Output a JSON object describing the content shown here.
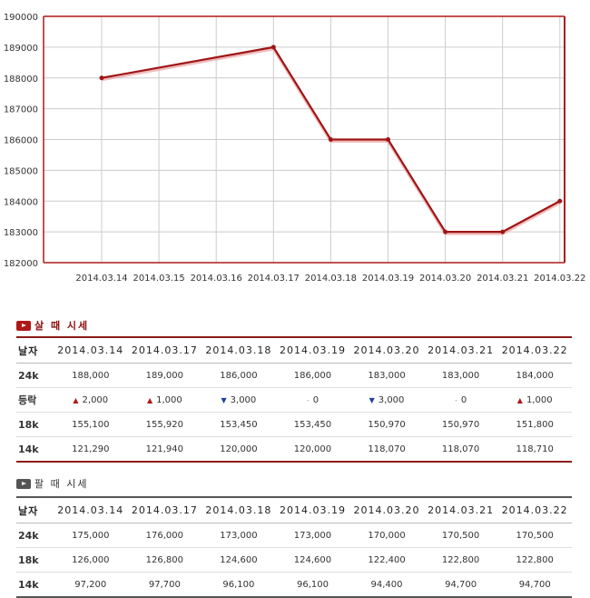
{
  "chart_data": {
    "type": "line",
    "x": [
      "2014.03.14",
      "2014.03.15",
      "2014.03.16",
      "2014.03.17",
      "2014.03.18",
      "2014.03.19",
      "2014.03.20",
      "2014.03.21",
      "2014.03.22"
    ],
    "points": [
      {
        "x": "2014.03.14",
        "y": 188000
      },
      {
        "x": "2014.03.17",
        "y": 189000
      },
      {
        "x": "2014.03.18",
        "y": 186000
      },
      {
        "x": "2014.03.19",
        "y": 186000
      },
      {
        "x": "2014.03.20",
        "y": 183000
      },
      {
        "x": "2014.03.21",
        "y": 183000
      },
      {
        "x": "2014.03.22",
        "y": 184000
      }
    ],
    "y_ticks": [
      "190000",
      "189000",
      "188000",
      "187000",
      "186000",
      "185000",
      "184000",
      "183000",
      "182000"
    ],
    "ylim": [
      182000,
      190000
    ],
    "grid": true,
    "colors": {
      "line": "#a01515",
      "frame": "#b01818",
      "grid": "#cccccc"
    }
  },
  "buy": {
    "title": "살 때 시세",
    "header": [
      "날자",
      "2014.03.14",
      "2014.03.17",
      "2014.03.18",
      "2014.03.19",
      "2014.03.20",
      "2014.03.21",
      "2014.03.22"
    ],
    "rows": [
      {
        "label": "24k",
        "cells": [
          "188,000",
          "189,000",
          "186,000",
          "186,000",
          "183,000",
          "183,000",
          "184,000"
        ]
      },
      {
        "label": "등락",
        "cells": [
          {
            "dir": "up",
            "sym": "▲",
            "val": "2,000"
          },
          {
            "dir": "up",
            "sym": "▲",
            "val": "1,000"
          },
          {
            "dir": "down",
            "sym": "▼",
            "val": "3,000"
          },
          {
            "dir": "flat",
            "sym": "-",
            "val": "0"
          },
          {
            "dir": "down",
            "sym": "▼",
            "val": "3,000"
          },
          {
            "dir": "flat",
            "sym": "-",
            "val": "0"
          },
          {
            "dir": "up",
            "sym": "▲",
            "val": "1,000"
          }
        ]
      },
      {
        "label": "18k",
        "cells": [
          "155,100",
          "155,920",
          "153,450",
          "153,450",
          "150,970",
          "150,970",
          "151,800"
        ]
      },
      {
        "label": "14k",
        "cells": [
          "121,290",
          "121,940",
          "120,000",
          "120,000",
          "118,070",
          "118,070",
          "118,710"
        ]
      }
    ]
  },
  "sell": {
    "title": "팔 때 시세",
    "header": [
      "날자",
      "2014.03.14",
      "2014.03.17",
      "2014.03.18",
      "2014.03.19",
      "2014.03.20",
      "2014.03.21",
      "2014.03.22"
    ],
    "rows": [
      {
        "label": "24k",
        "cells": [
          "175,000",
          "176,000",
          "173,000",
          "173,000",
          "170,000",
          "170,500",
          "170,500"
        ]
      },
      {
        "label": "18k",
        "cells": [
          "126,000",
          "126,800",
          "124,600",
          "124,600",
          "122,400",
          "122,800",
          "122,800"
        ]
      },
      {
        "label": "14k",
        "cells": [
          "97,200",
          "97,700",
          "96,100",
          "96,100",
          "94,400",
          "94,700",
          "94,700"
        ]
      }
    ]
  }
}
